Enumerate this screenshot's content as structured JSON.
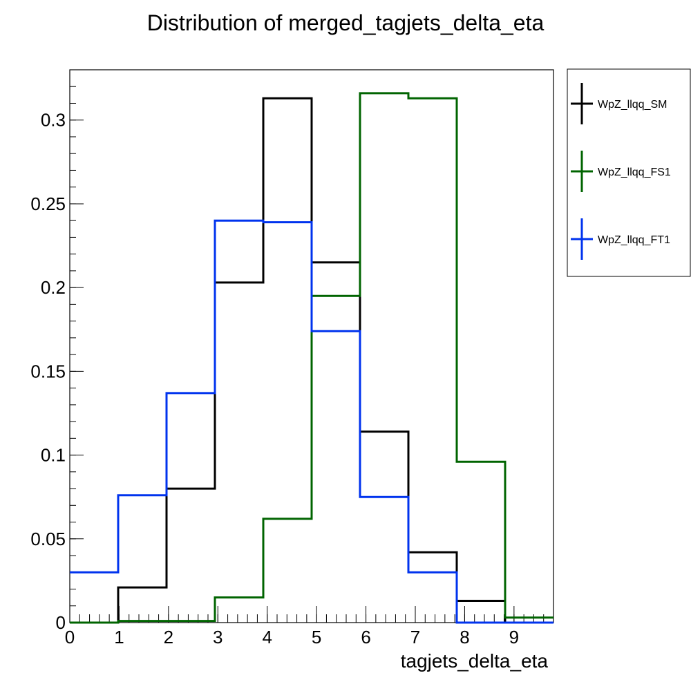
{
  "chart_data": {
    "type": "line",
    "title": "Distribution of merged_tagjets_delta_eta",
    "xlabel": "tagjets_delta_eta",
    "ylabel": "",
    "xlim": [
      0,
      9.8
    ],
    "ylim": [
      0,
      0.33
    ],
    "x_ticks": [
      "0",
      "1",
      "2",
      "3",
      "4",
      "5",
      "6",
      "7",
      "8",
      "9"
    ],
    "y_ticks": [
      "0",
      "0.05",
      "0.1",
      "0.15",
      "0.2",
      "0.25",
      "0.3"
    ],
    "bin_edges": [
      0,
      0.98,
      1.96,
      2.94,
      3.92,
      4.9,
      5.88,
      6.86,
      7.84,
      8.82,
      9.8
    ],
    "grid": false,
    "legend_position": "right",
    "series": [
      {
        "name": "WpZ_llqq_SM",
        "color": "#000000",
        "values": [
          0.0,
          0.021,
          0.08,
          0.203,
          0.313,
          0.215,
          0.114,
          0.042,
          0.013,
          0.0
        ]
      },
      {
        "name": "WpZ_llqq_FS1",
        "color": "#006400",
        "values": [
          0.0,
          0.001,
          0.001,
          0.015,
          0.062,
          0.195,
          0.316,
          0.313,
          0.096,
          0.003
        ]
      },
      {
        "name": "WpZ_llqq_FT1",
        "color": "#0033ee",
        "values": [
          0.03,
          0.076,
          0.137,
          0.24,
          0.239,
          0.174,
          0.075,
          0.03,
          0.0,
          0.0
        ]
      }
    ]
  }
}
